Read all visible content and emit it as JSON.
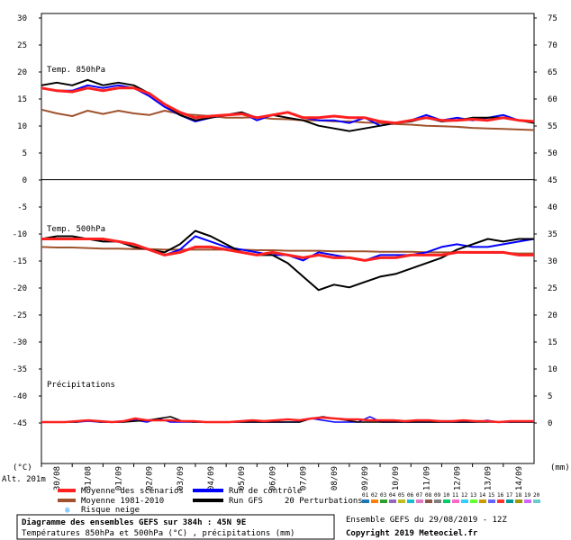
{
  "chart_data": {
    "type": "line",
    "title": "Diagramme des ensembles GEFS sur 384h : 45N 9E",
    "subtitle": "Températures 850hPa et 500hPa (°C) , précipitations (mm)",
    "run_label": "Ensemble GEFS du 29/08/2019 - 12Z",
    "copyright": "Copyright 2019 Meteociel.fr",
    "altitude": "Alt. 201m",
    "left_unit": "(°C)",
    "right_unit": "(mm)",
    "panel_labels": {
      "t850": "Temp. 850hPa",
      "t500": "Temp. 500hPa",
      "precip": "Précipitations"
    },
    "left_ticks": [
      "30",
      "25",
      "20",
      "15",
      "10",
      "5",
      "0",
      "-5",
      "-10",
      "-15",
      "-20",
      "-25",
      "-30",
      "-35",
      "-40",
      "-45"
    ],
    "right_ticks": [
      "75",
      "70",
      "65",
      "60",
      "55",
      "50",
      "45",
      "40",
      "35",
      "30",
      "25",
      "20",
      "15",
      "10",
      "5",
      "0"
    ],
    "date_ticks": [
      "30/08",
      "31/08",
      "01/09",
      "02/09",
      "03/09",
      "04/09",
      "05/09",
      "06/09",
      "07/09",
      "08/09",
      "09/09",
      "10/09",
      "11/09",
      "12/09",
      "13/09",
      "14/09"
    ],
    "legend": {
      "mean": "Moyenne des scénarios",
      "climo": "Moyenne 1981-2010",
      "snow": "Risque neige",
      "control": "Run de contrôle",
      "gfs": "Run GFS",
      "perturb": "20 Perturbations",
      "perturb_ids": [
        "01",
        "02",
        "03",
        "04",
        "05",
        "06",
        "07",
        "08",
        "09",
        "10",
        "11",
        "12",
        "13",
        "14",
        "15",
        "16",
        "17",
        "18",
        "19",
        "20"
      ],
      "perturb_colors": [
        "#1f77b4",
        "#ff7f0e",
        "#2ca02c",
        "#9467bd",
        "#bcbd22",
        "#17becf",
        "#e377c2",
        "#8c564b",
        "#7f7f7f",
        "#00cc66",
        "#ff66cc",
        "#33ccff",
        "#66ff33",
        "#cc9900",
        "#6666ff",
        "#ff3333",
        "#009999",
        "#999900",
        "#cc66ff",
        "#66cccc"
      ]
    },
    "colors": {
      "mean": "#ff2020",
      "climo": "#a0522d",
      "control": "#0000ff",
      "gfs": "#000000"
    },
    "x_days": [
      0,
      0.5,
      1,
      1.5,
      2,
      2.5,
      3,
      3.5,
      4,
      4.5,
      5,
      5.5,
      6,
      6.5,
      7,
      7.5,
      8,
      8.5,
      9,
      9.5,
      10,
      10.5,
      11,
      11.5,
      12,
      12.5,
      13,
      13.5,
      14,
      14.5,
      15,
      15.5,
      16
    ],
    "t850": {
      "mean": [
        17,
        16.5,
        16.3,
        17,
        16.5,
        17,
        17,
        16,
        14,
        12.5,
        11.5,
        11.8,
        12,
        12.2,
        11.5,
        12,
        12.5,
        11.5,
        11.5,
        11.8,
        11.5,
        11.5,
        10.8,
        10.5,
        11,
        11.5,
        11,
        11,
        11.2,
        11,
        11.5,
        11,
        10.8
      ],
      "control": [
        17,
        16.5,
        16.5,
        17.5,
        17,
        17.5,
        17,
        15.5,
        13.5,
        12,
        10.8,
        11.5,
        12,
        12.5,
        11,
        12,
        12.5,
        11.5,
        11,
        11,
        10.5,
        11.5,
        10,
        10.5,
        11,
        12,
        11,
        11.5,
        11,
        11.5,
        12,
        11,
        10.8
      ],
      "gfs": [
        17.5,
        18,
        17.5,
        18.5,
        17.5,
        18,
        17.5,
        16,
        14,
        12,
        11,
        11.5,
        12,
        12.5,
        11.5,
        12,
        11.5,
        11,
        10,
        9.5,
        9,
        9.5,
        10,
        10.5,
        10.8,
        11.5,
        10.8,
        11,
        11.5,
        11.5,
        11.5,
        11,
        10.5
      ],
      "climo": [
        13,
        12.3,
        11.8,
        12.8,
        12.2,
        12.8,
        12.3,
        12,
        12.8,
        12.2,
        12,
        11.8,
        11.5,
        11.5,
        11.6,
        11.3,
        11.2,
        11,
        11,
        10.8,
        10.8,
        10.6,
        10.5,
        10.3,
        10.2,
        10,
        9.9,
        9.8,
        9.6,
        9.5,
        9.4,
        9.3,
        9.2
      ]
    },
    "t500": {
      "mean": [
        -11,
        -11,
        -11,
        -11,
        -11,
        -11.5,
        -12,
        -13,
        -14,
        -13.5,
        -12.5,
        -12.5,
        -13,
        -13.5,
        -14,
        -13.5,
        -14,
        -14.5,
        -14,
        -14.5,
        -14.5,
        -15,
        -14.5,
        -14.5,
        -14,
        -14,
        -14,
        -13.5,
        -13.5,
        -13.5,
        -13.5,
        -14,
        -14
      ],
      "control": [
        -11,
        -11,
        -11,
        -11,
        -11,
        -11.5,
        -12,
        -13,
        -14,
        -13,
        -10.5,
        -11.5,
        -12.5,
        -13,
        -13.5,
        -14,
        -14,
        -15,
        -13.5,
        -14,
        -14.5,
        -15,
        -14,
        -14,
        -14,
        -13.5,
        -12.5,
        -12,
        -12.5,
        -12.5,
        -12,
        -11.5,
        -11
      ],
      "gfs": [
        -11,
        -10.5,
        -10.5,
        -11,
        -11.5,
        -11.5,
        -12.5,
        -13,
        -13.5,
        -12,
        -9.5,
        -10.5,
        -12,
        -13.5,
        -14,
        -14,
        -15.5,
        -18,
        -20.5,
        -19.5,
        -20,
        -19,
        -18,
        -17.5,
        -16.5,
        -15.5,
        -14.5,
        -13,
        -12,
        -11,
        -11.5,
        -11,
        -11
      ],
      "climo": [
        -12.5,
        -12.6,
        -12.6,
        -12.7,
        -12.8,
        -12.8,
        -12.9,
        -12.9,
        -13,
        -13,
        -13,
        -13,
        -13,
        -13,
        -13.1,
        -13.1,
        -13.2,
        -13.2,
        -13.2,
        -13.3,
        -13.3,
        -13.3,
        -13.4,
        -13.4,
        -13.4,
        -13.5,
        -13.5,
        -13.5,
        -13.6,
        -13.6,
        -13.6,
        -13.7,
        -13.7
      ]
    },
    "precip": {
      "mean": [
        0,
        0,
        0,
        0.5,
        1,
        0.5,
        0,
        0.5,
        2,
        1,
        1,
        1,
        0.5,
        0.5,
        0,
        0,
        0,
        0.5,
        1,
        0.5,
        1,
        1.5,
        1,
        2,
        2.5,
        2,
        1.5,
        1.5,
        1,
        1,
        1,
        0.5,
        1,
        1,
        0.5,
        0.5,
        1,
        0.5,
        0.5,
        0,
        0.5,
        0.5,
        0.5
      ],
      "control": [
        0,
        0,
        0,
        0,
        0.5,
        0,
        0,
        0,
        1,
        0,
        2,
        0,
        0,
        0,
        0,
        0,
        0,
        0,
        0,
        0,
        0,
        0,
        0,
        2,
        1,
        0,
        0,
        0,
        3,
        0,
        0,
        0,
        0,
        0,
        0,
        0,
        0,
        0,
        1,
        0,
        0,
        0,
        0
      ],
      "gfs": [
        0,
        0,
        0,
        0,
        1,
        0,
        0,
        0,
        0.5,
        1,
        2,
        3,
        0.5,
        0,
        0,
        0,
        0,
        0,
        0,
        0,
        0,
        0,
        0,
        2,
        3,
        2,
        1,
        0,
        0,
        0,
        0,
        0,
        0,
        0,
        0,
        0,
        0,
        0,
        0,
        0,
        0,
        0,
        0
      ]
    },
    "left_range": [
      -45,
      30
    ],
    "right_range_850": [
      45,
      75
    ],
    "right_range_precip": [
      0,
      45
    ],
    "grid": false
  }
}
